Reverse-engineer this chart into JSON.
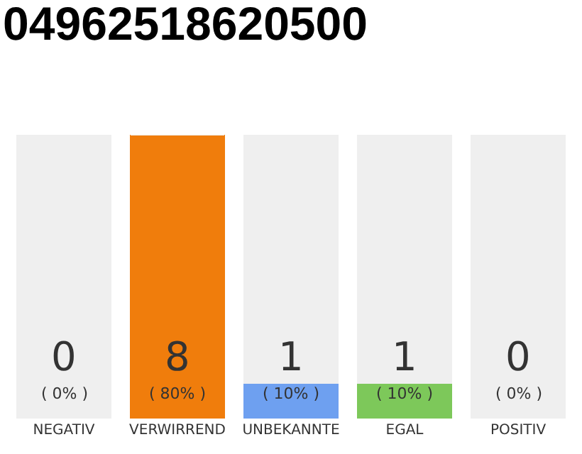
{
  "chart_data": {
    "type": "bar",
    "title": "04962518620500",
    "stacked": true,
    "categories": [
      "NEGATIV",
      "VERWIRREND",
      "UNBEKANNTE",
      "EGAL",
      "POSITIV"
    ],
    "series": [
      {
        "colors": [
          "#e8283c",
          "#f07d0c",
          "#6ea0f0",
          "#7dc85a",
          "#28a046"
        ],
        "values": [
          0,
          8,
          1,
          1,
          0
        ],
        "value_labels": [
          "0\n( 0% )",
          "8\n( 80% )",
          "1\n( 10% )",
          "1\n( 10% )",
          "0\n( 0% )"
        ]
      },
      {
        "color": "#efefef",
        "values": [
          8,
          0,
          7,
          7,
          8
        ]
      }
    ]
  }
}
